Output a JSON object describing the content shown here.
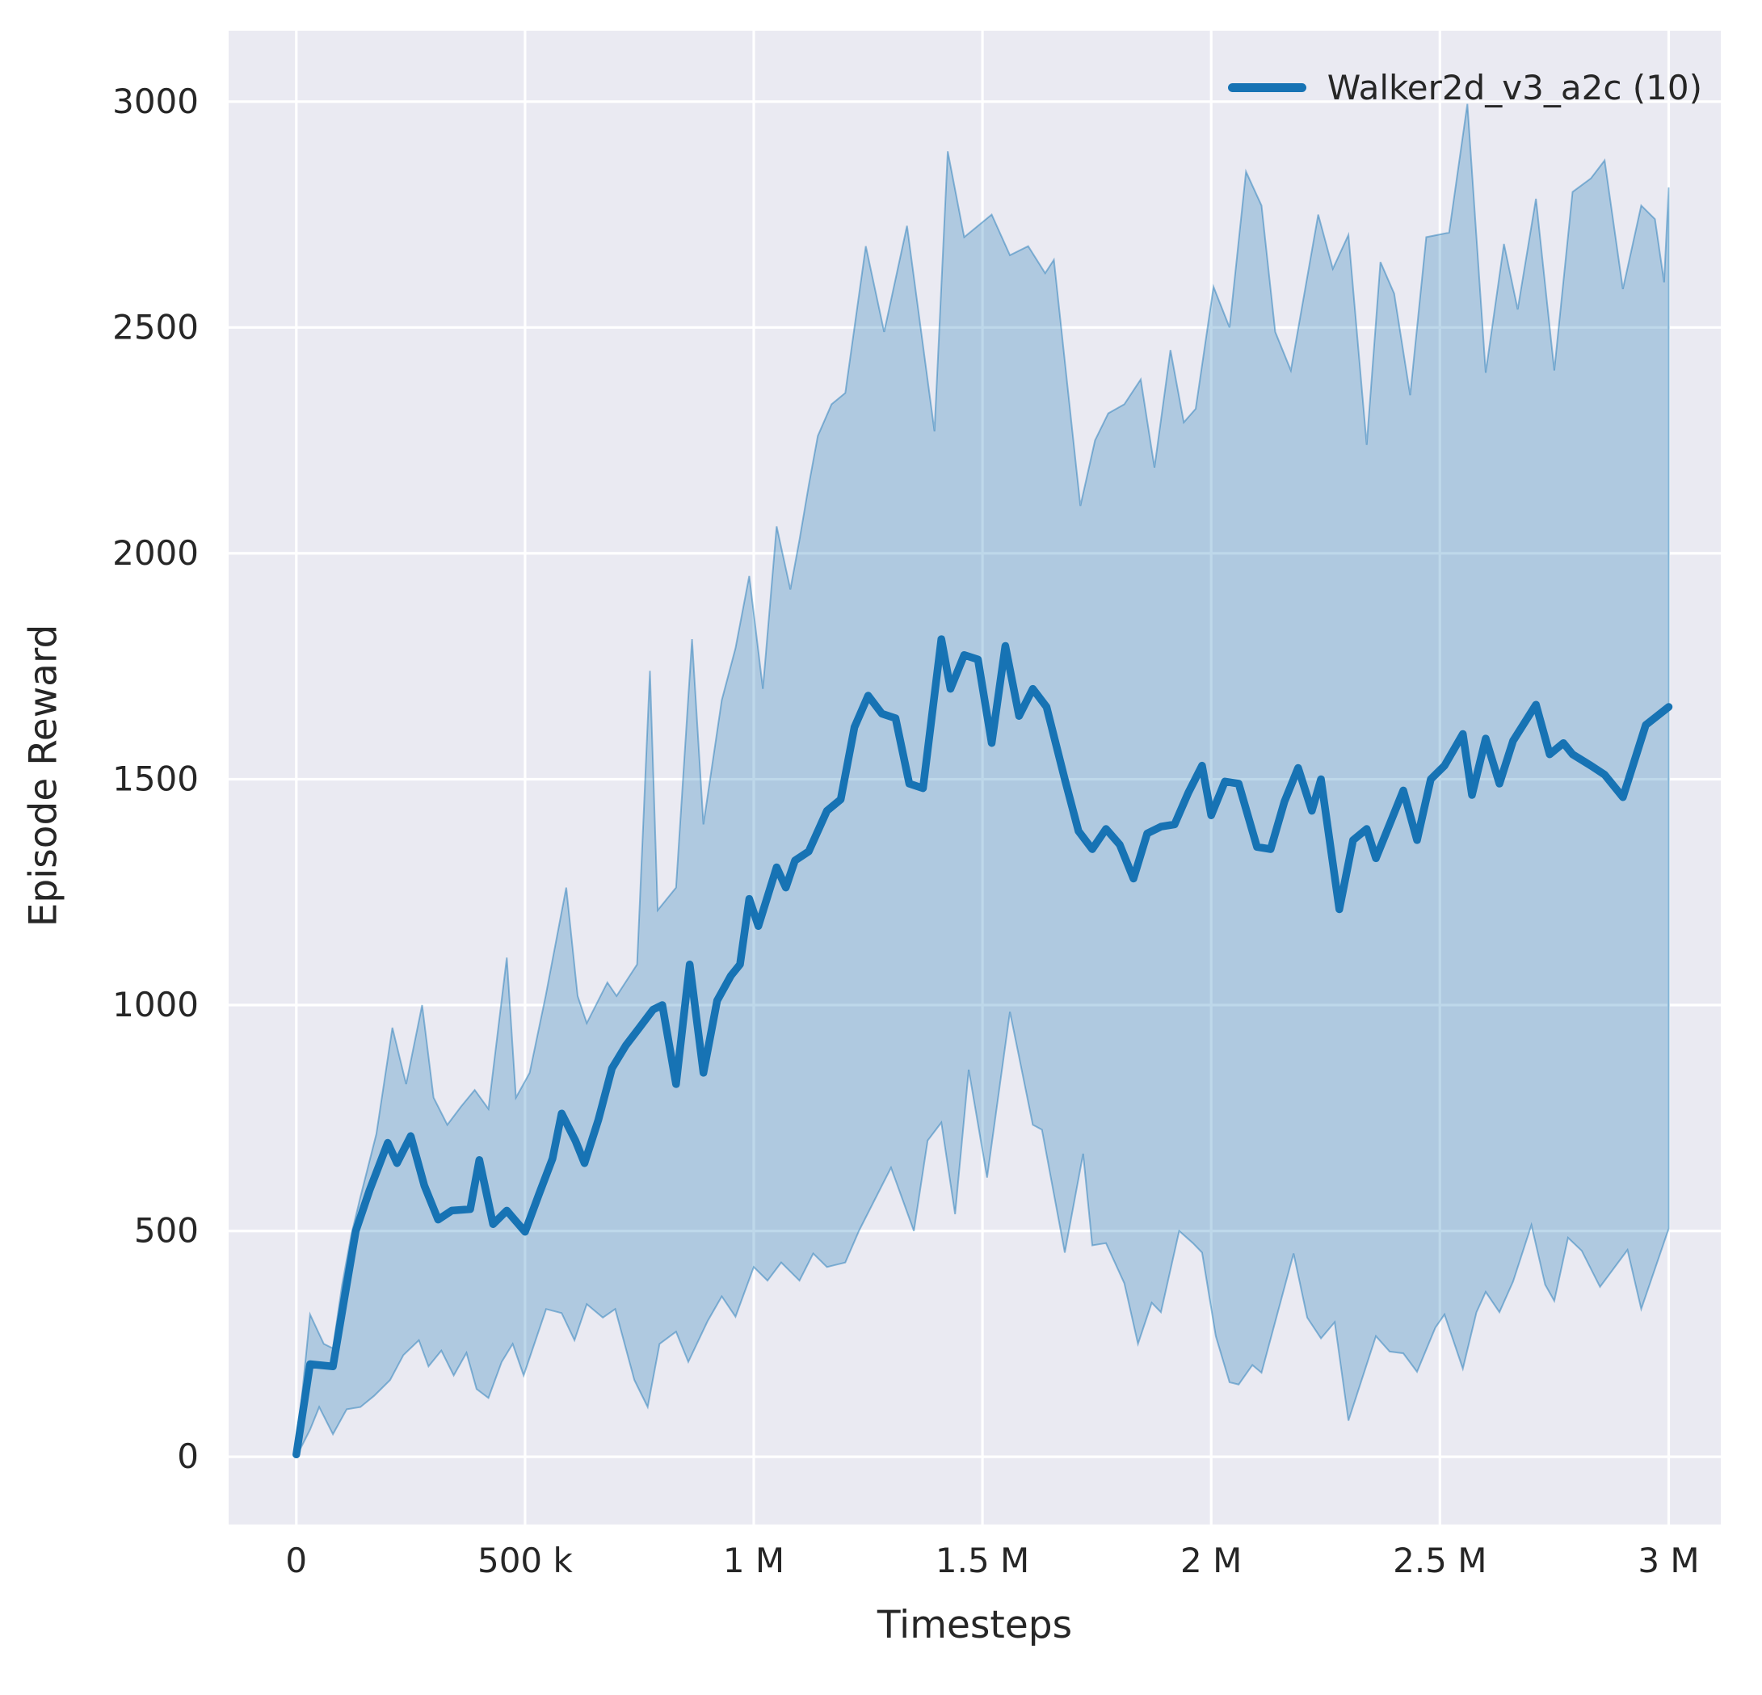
{
  "chart_data": {
    "type": "line",
    "title": "",
    "xlabel": "Timesteps",
    "ylabel": "Episode Reward",
    "x_unit": "timesteps (millions)",
    "xlim": [
      -148000,
      3114000
    ],
    "ylim": [
      -150,
      3157
    ],
    "grid": true,
    "axes_bg": "#eaeaf2",
    "grid_color": "#ffffff",
    "text_color": "#262626",
    "xticks": {
      "values": [
        0,
        0.5,
        1,
        1.5,
        2,
        2.5,
        3
      ],
      "labels": [
        "0",
        "500 k",
        "1 M",
        "1.5 M",
        "2 M",
        "2.5 M",
        "3 M"
      ]
    },
    "yticks": {
      "values": [
        0,
        500,
        1000,
        1500,
        2000,
        2500,
        3000
      ],
      "labels": [
        "0",
        "500",
        "1000",
        "1500",
        "2000",
        "2500",
        "3000"
      ]
    },
    "legend": {
      "label": "Walker2d_v3_a2c (10)",
      "position": "upper right"
    },
    "series": [
      {
        "name": "Walker2d_v3_a2c (10)",
        "color": "#1773b4",
        "band_fill_opacity": 0.28,
        "mean": [
          [
            0.0,
            5
          ],
          [
            0.03,
            205
          ],
          [
            0.08,
            200
          ],
          [
            0.1,
            320
          ],
          [
            0.13,
            500
          ],
          [
            0.16,
            590
          ],
          [
            0.2,
            695
          ],
          [
            0.22,
            650
          ],
          [
            0.25,
            710
          ],
          [
            0.28,
            600
          ],
          [
            0.31,
            525
          ],
          [
            0.34,
            545
          ],
          [
            0.38,
            548
          ],
          [
            0.4,
            657
          ],
          [
            0.43,
            515
          ],
          [
            0.46,
            545
          ],
          [
            0.5,
            498
          ],
          [
            0.53,
            580
          ],
          [
            0.56,
            660
          ],
          [
            0.58,
            760
          ],
          [
            0.61,
            700
          ],
          [
            0.63,
            650
          ],
          [
            0.66,
            745
          ],
          [
            0.69,
            860
          ],
          [
            0.72,
            910
          ],
          [
            0.75,
            950
          ],
          [
            0.78,
            990
          ],
          [
            0.8,
            1000
          ],
          [
            0.83,
            825
          ],
          [
            0.86,
            1090
          ],
          [
            0.89,
            850
          ],
          [
            0.92,
            1010
          ],
          [
            0.95,
            1065
          ],
          [
            0.97,
            1090
          ],
          [
            0.99,
            1235
          ],
          [
            1.01,
            1175
          ],
          [
            1.05,
            1305
          ],
          [
            1.07,
            1260
          ],
          [
            1.09,
            1320
          ],
          [
            1.12,
            1340
          ],
          [
            1.16,
            1430
          ],
          [
            1.19,
            1455
          ],
          [
            1.22,
            1615
          ],
          [
            1.25,
            1685
          ],
          [
            1.28,
            1645
          ],
          [
            1.31,
            1635
          ],
          [
            1.34,
            1490
          ],
          [
            1.37,
            1480
          ],
          [
            1.41,
            1810
          ],
          [
            1.43,
            1700
          ],
          [
            1.46,
            1775
          ],
          [
            1.49,
            1765
          ],
          [
            1.52,
            1580
          ],
          [
            1.55,
            1795
          ],
          [
            1.58,
            1640
          ],
          [
            1.61,
            1700
          ],
          [
            1.64,
            1660
          ],
          [
            1.68,
            1500
          ],
          [
            1.71,
            1385
          ],
          [
            1.74,
            1345
          ],
          [
            1.77,
            1390
          ],
          [
            1.8,
            1355
          ],
          [
            1.83,
            1280
          ],
          [
            1.86,
            1380
          ],
          [
            1.89,
            1395
          ],
          [
            1.92,
            1400
          ],
          [
            1.95,
            1470
          ],
          [
            1.98,
            1530
          ],
          [
            2.0,
            1420
          ],
          [
            2.03,
            1495
          ],
          [
            2.06,
            1490
          ],
          [
            2.1,
            1350
          ],
          [
            2.13,
            1345
          ],
          [
            2.16,
            1450
          ],
          [
            2.19,
            1525
          ],
          [
            2.22,
            1430
          ],
          [
            2.24,
            1500
          ],
          [
            2.28,
            1212
          ],
          [
            2.31,
            1365
          ],
          [
            2.34,
            1390
          ],
          [
            2.36,
            1325
          ],
          [
            2.4,
            1425
          ],
          [
            2.42,
            1475
          ],
          [
            2.45,
            1365
          ],
          [
            2.48,
            1500
          ],
          [
            2.51,
            1530
          ],
          [
            2.55,
            1600
          ],
          [
            2.57,
            1465
          ],
          [
            2.6,
            1590
          ],
          [
            2.63,
            1490
          ],
          [
            2.66,
            1585
          ],
          [
            2.71,
            1665
          ],
          [
            2.74,
            1555
          ],
          [
            2.77,
            1580
          ],
          [
            2.79,
            1555
          ],
          [
            2.83,
            1530
          ],
          [
            2.86,
            1510
          ],
          [
            2.9,
            1460
          ],
          [
            2.95,
            1620
          ],
          [
            3.0,
            1660
          ]
        ],
        "band_upper": [
          [
            0.0,
            10
          ],
          [
            0.03,
            315
          ],
          [
            0.06,
            250
          ],
          [
            0.08,
            240
          ],
          [
            0.1,
            380
          ],
          [
            0.12,
            490
          ],
          [
            0.14,
            575
          ],
          [
            0.175,
            715
          ],
          [
            0.21,
            950
          ],
          [
            0.24,
            825
          ],
          [
            0.275,
            1000
          ],
          [
            0.3,
            795
          ],
          [
            0.33,
            735
          ],
          [
            0.36,
            775
          ],
          [
            0.39,
            812
          ],
          [
            0.42,
            770
          ],
          [
            0.46,
            1105
          ],
          [
            0.48,
            795
          ],
          [
            0.51,
            850
          ],
          [
            0.545,
            1020
          ],
          [
            0.59,
            1260
          ],
          [
            0.615,
            1020
          ],
          [
            0.635,
            960
          ],
          [
            0.68,
            1050
          ],
          [
            0.7,
            1020
          ],
          [
            0.745,
            1090
          ],
          [
            0.773,
            1740
          ],
          [
            0.79,
            1210
          ],
          [
            0.83,
            1260
          ],
          [
            0.865,
            1810
          ],
          [
            0.89,
            1400
          ],
          [
            0.93,
            1675
          ],
          [
            0.96,
            1790
          ],
          [
            0.99,
            1950
          ],
          [
            1.02,
            1700
          ],
          [
            1.05,
            2060
          ],
          [
            1.08,
            1920
          ],
          [
            1.1,
            2030
          ],
          [
            1.12,
            2150
          ],
          [
            1.14,
            2260
          ],
          [
            1.17,
            2330
          ],
          [
            1.2,
            2355
          ],
          [
            1.245,
            2680
          ],
          [
            1.285,
            2490
          ],
          [
            1.335,
            2725
          ],
          [
            1.395,
            2270
          ],
          [
            1.424,
            2890
          ],
          [
            1.46,
            2700
          ],
          [
            1.52,
            2750
          ],
          [
            1.56,
            2660
          ],
          [
            1.6,
            2680
          ],
          [
            1.637,
            2620
          ],
          [
            1.656,
            2650
          ],
          [
            1.714,
            2105
          ],
          [
            1.746,
            2250
          ],
          [
            1.775,
            2310
          ],
          [
            1.81,
            2330
          ],
          [
            1.846,
            2385
          ],
          [
            1.876,
            2190
          ],
          [
            1.911,
            2450
          ],
          [
            1.94,
            2290
          ],
          [
            1.966,
            2320
          ],
          [
            2.005,
            2590
          ],
          [
            2.04,
            2500
          ],
          [
            2.076,
            2845
          ],
          [
            2.11,
            2770
          ],
          [
            2.14,
            2490
          ],
          [
            2.174,
            2405
          ],
          [
            2.234,
            2750
          ],
          [
            2.266,
            2630
          ],
          [
            2.3,
            2705
          ],
          [
            2.34,
            2240
          ],
          [
            2.37,
            2645
          ],
          [
            2.4,
            2575
          ],
          [
            2.435,
            2350
          ],
          [
            2.47,
            2700
          ],
          [
            2.52,
            2710
          ],
          [
            2.56,
            2995
          ],
          [
            2.6,
            2400
          ],
          [
            2.64,
            2685
          ],
          [
            2.67,
            2540
          ],
          [
            2.71,
            2785
          ],
          [
            2.75,
            2405
          ],
          [
            2.79,
            2800
          ],
          [
            2.83,
            2830
          ],
          [
            2.86,
            2870
          ],
          [
            2.9,
            2585
          ],
          [
            2.94,
            2770
          ],
          [
            2.97,
            2740
          ],
          [
            2.99,
            2600
          ],
          [
            3.0,
            2810
          ]
        ],
        "band_lower": [
          [
            0.0,
            0
          ],
          [
            0.03,
            60
          ],
          [
            0.05,
            110
          ],
          [
            0.08,
            50
          ],
          [
            0.11,
            105
          ],
          [
            0.14,
            110
          ],
          [
            0.17,
            135
          ],
          [
            0.205,
            170
          ],
          [
            0.234,
            225
          ],
          [
            0.268,
            258
          ],
          [
            0.289,
            200
          ],
          [
            0.317,
            235
          ],
          [
            0.344,
            180
          ],
          [
            0.372,
            230
          ],
          [
            0.394,
            150
          ],
          [
            0.42,
            130
          ],
          [
            0.449,
            210
          ],
          [
            0.473,
            250
          ],
          [
            0.497,
            180
          ],
          [
            0.546,
            327
          ],
          [
            0.58,
            318
          ],
          [
            0.608,
            258
          ],
          [
            0.635,
            338
          ],
          [
            0.67,
            308
          ],
          [
            0.697,
            327
          ],
          [
            0.739,
            170
          ],
          [
            0.768,
            110
          ],
          [
            0.794,
            250
          ],
          [
            0.83,
            277
          ],
          [
            0.857,
            210
          ],
          [
            0.899,
            300
          ],
          [
            0.93,
            355
          ],
          [
            0.96,
            310
          ],
          [
            1.0,
            420
          ],
          [
            1.03,
            390
          ],
          [
            1.06,
            430
          ],
          [
            1.1,
            390
          ],
          [
            1.13,
            450
          ],
          [
            1.16,
            420
          ],
          [
            1.2,
            430
          ],
          [
            1.23,
            500
          ],
          [
            1.26,
            560
          ],
          [
            1.3,
            640
          ],
          [
            1.35,
            500
          ],
          [
            1.38,
            700
          ],
          [
            1.41,
            740
          ],
          [
            1.44,
            537
          ],
          [
            1.47,
            857
          ],
          [
            1.51,
            618
          ],
          [
            1.56,
            985
          ],
          [
            1.61,
            735
          ],
          [
            1.63,
            724
          ],
          [
            1.68,
            452
          ],
          [
            1.72,
            671
          ],
          [
            1.74,
            468
          ],
          [
            1.77,
            473
          ],
          [
            1.81,
            384
          ],
          [
            1.84,
            250
          ],
          [
            1.87,
            341
          ],
          [
            1.89,
            320
          ],
          [
            1.93,
            500
          ],
          [
            1.96,
            473
          ],
          [
            1.98,
            452
          ],
          [
            2.01,
            267
          ],
          [
            2.04,
            165
          ],
          [
            2.06,
            160
          ],
          [
            2.09,
            203
          ],
          [
            2.11,
            186
          ],
          [
            2.18,
            450
          ],
          [
            2.21,
            308
          ],
          [
            2.24,
            262
          ],
          [
            2.27,
            298
          ],
          [
            2.3,
            80
          ],
          [
            2.36,
            267
          ],
          [
            2.39,
            233
          ],
          [
            2.42,
            229
          ],
          [
            2.45,
            188
          ],
          [
            2.49,
            286
          ],
          [
            2.51,
            315
          ],
          [
            2.55,
            195
          ],
          [
            2.58,
            320
          ],
          [
            2.6,
            365
          ],
          [
            2.63,
            320
          ],
          [
            2.66,
            388
          ],
          [
            2.7,
            513
          ],
          [
            2.73,
            381
          ],
          [
            2.75,
            345
          ],
          [
            2.78,
            485
          ],
          [
            2.81,
            456
          ],
          [
            2.85,
            376
          ],
          [
            2.91,
            458
          ],
          [
            2.94,
            327
          ],
          [
            3.0,
            505
          ]
        ]
      }
    ]
  }
}
